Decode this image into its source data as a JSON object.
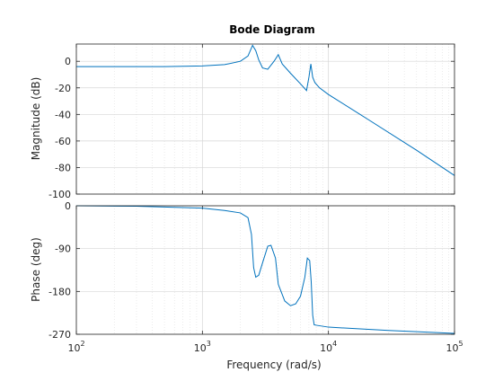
{
  "chart_data": {
    "type": "line",
    "title": "Bode Diagram",
    "xlabel": "Frequency  (rad/s)",
    "xscale": "log",
    "xlim": [
      100,
      100000
    ],
    "grid": "on (major and minor)",
    "line_color": "#0072BD",
    "x_ticks": [
      100,
      1000,
      10000,
      100000
    ],
    "x_tick_labels": [
      {
        "base": "10",
        "exp": "2"
      },
      {
        "base": "10",
        "exp": "3"
      },
      {
        "base": "10",
        "exp": "4"
      },
      {
        "base": "10",
        "exp": "5"
      }
    ],
    "panels": [
      {
        "name": "magnitude",
        "ylabel": "Magnitude (dB)",
        "ylim": [
          -100,
          13
        ],
        "y_ticks": [
          0,
          -20,
          -40,
          -60,
          -80,
          -100
        ],
        "y_tick_labels": [
          "0",
          "-20",
          "-40",
          "-60",
          "-80",
          "-100"
        ],
        "series": [
          {
            "x": [
              100,
              500,
              1000,
              1500,
              2000,
              2300,
              2500,
              2650,
              2800,
              3000,
              3300,
              3700,
              4000,
              4300,
              5000,
              6000,
              6700,
              7000,
              7250,
              7500,
              7800,
              8500,
              10000,
              20000,
              50000,
              100000
            ],
            "y": [
              -4,
              -4,
              -3.5,
              -2.5,
              0,
              4,
              12,
              8,
              1,
              -5,
              -6,
              0,
              5,
              -2,
              -9,
              -17,
              -22,
              -12,
              -2,
              -12,
              -16,
              -20,
              -25,
              -43,
              -67,
              -86
            ]
          }
        ]
      },
      {
        "name": "phase",
        "ylabel": "Phase (deg)",
        "ylim": [
          -270,
          0
        ],
        "y_ticks": [
          0,
          -90,
          -180,
          -270
        ],
        "y_tick_labels": [
          "0",
          "-90",
          "-180",
          "-270"
        ],
        "series": [
          {
            "x": [
              100,
              300,
              1000,
              1500,
              2000,
              2300,
              2450,
              2550,
              2650,
              2800,
              3000,
              3300,
              3500,
              3800,
              4000,
              4500,
              5000,
              5500,
              6000,
              6500,
              6800,
              7100,
              7300,
              7500,
              7700,
              8000,
              10000,
              30000,
              100000
            ],
            "y": [
              0,
              -1,
              -5,
              -10,
              -15,
              -25,
              -60,
              -130,
              -150,
              -146,
              -120,
              -85,
              -83,
              -110,
              -165,
              -200,
              -210,
              -206,
              -190,
              -150,
              -110,
              -115,
              -160,
              -230,
              -250,
              -251,
              -255,
              -262,
              -268
            ]
          }
        ]
      }
    ]
  }
}
